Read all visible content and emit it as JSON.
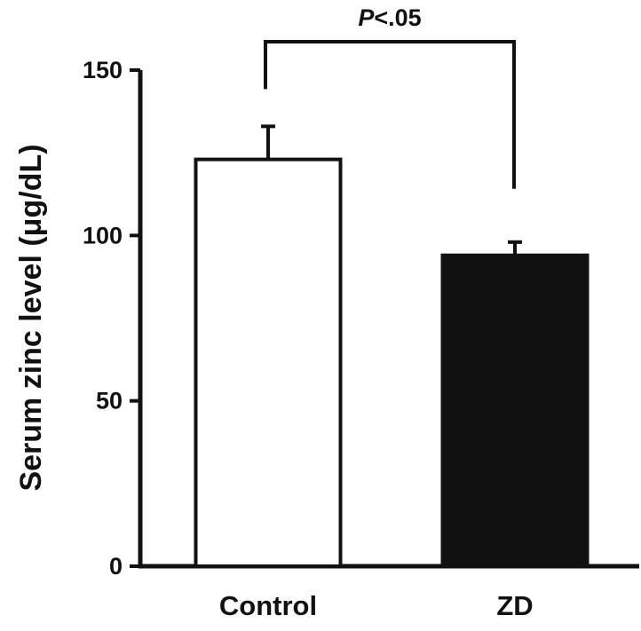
{
  "chart_data": {
    "type": "bar",
    "categories": [
      "Control",
      "ZD"
    ],
    "values": [
      123,
      94
    ],
    "errors": [
      10,
      4
    ],
    "bar_fill": [
      "#ffffff",
      "#111111"
    ],
    "bar_stroke": "#111111",
    "xlabel": "",
    "ylabel": "Serum zinc level (μg/dL)",
    "ylim": [
      0,
      150
    ],
    "yticks": [
      0,
      50,
      100,
      150
    ],
    "ytick_labels": [
      "0",
      "50",
      "100",
      "150"
    ],
    "grid": false,
    "legend": "none",
    "significance": {
      "between": [
        "Control",
        "ZD"
      ],
      "p_letter": "P",
      "p_rest": "<.05"
    }
  }
}
